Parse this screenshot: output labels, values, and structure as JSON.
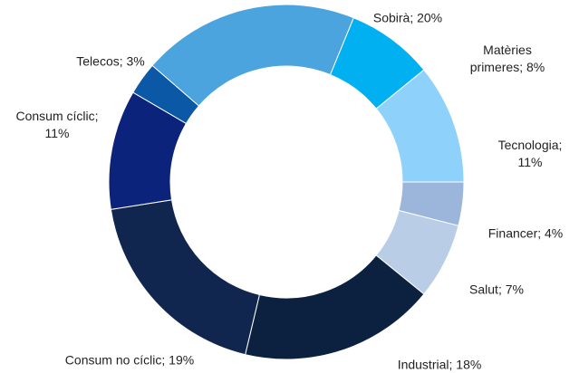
{
  "chart_data": {
    "type": "donut",
    "categories": [
      "Sobirà",
      "Matèries primeres",
      "Tecnologia",
      "Financer",
      "Salut",
      "Industrial",
      "Consum no cíclic",
      "Consum cíclic",
      "Telecos"
    ],
    "values": [
      20,
      8,
      11,
      4,
      7,
      18,
      19,
      11,
      3
    ],
    "value_labels": [
      "20%",
      "8%",
      "11%",
      "4%",
      "7%",
      "18%",
      "19%",
      "11%",
      "3%"
    ],
    "label_separator": "; ",
    "colors": [
      "#4ba4de",
      "#00b0f0",
      "#8ed2fb",
      "#9bb6da",
      "#b9cde7",
      "#0c2140",
      "#11264f",
      "#0b237a",
      "#0a58a6"
    ]
  }
}
